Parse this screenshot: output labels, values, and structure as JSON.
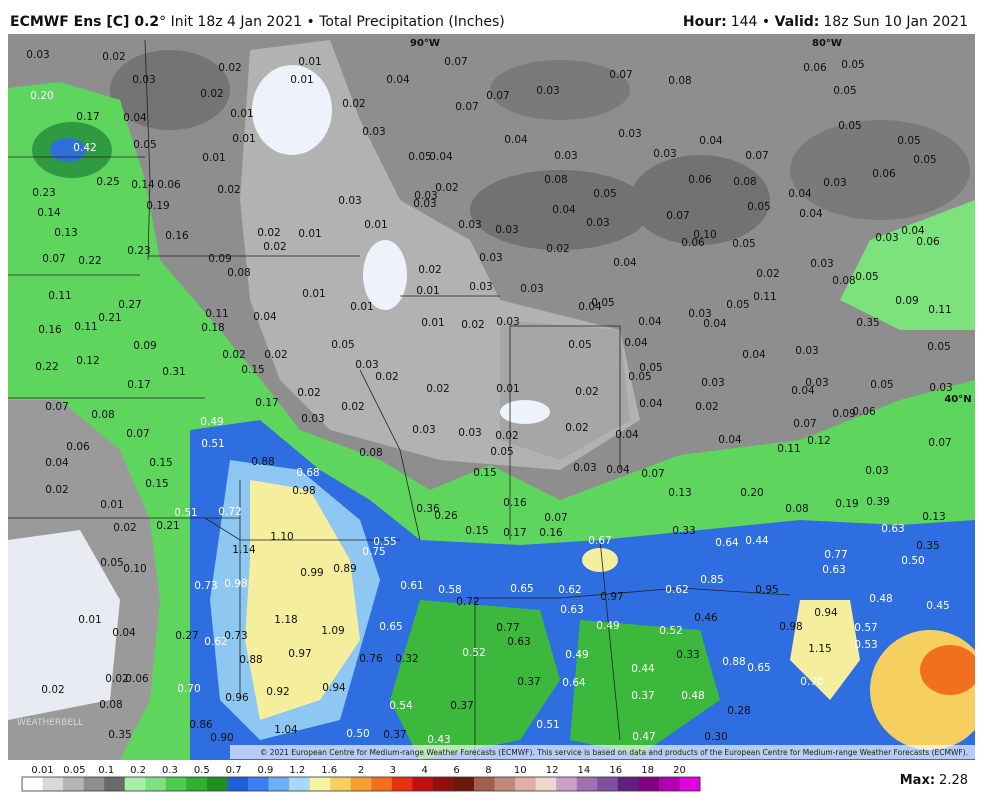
{
  "header": {
    "model": "ECMWF Ens [C] 0.2",
    "init": "° Init 18z 4 Jan 2021 • Total Precipitation (Inches)",
    "hour_label": "Hour:",
    "hour": "144",
    "sep": " • ",
    "valid_label": "Valid:",
    "valid": "18z Sun 10 Jan 2021"
  },
  "map": {
    "grid_labels": [
      "90°W",
      "80°W",
      "40°N"
    ],
    "logo": "WEATHERBELL",
    "copyright": "© 2021 European Centre for Medium-range Weather Forecasts (ECMWF). This service is based on data and products of the European Centre for Medium-range Weather Forecasts (ECMWF).",
    "values": [
      "0.03",
      "0.02",
      "0.03",
      "0.02",
      "0.02",
      "0.01",
      "0.01",
      "0.01",
      "0.20",
      "0.17",
      "0.04",
      "0.42",
      "0.05",
      "0.01",
      "0.01",
      "0.02",
      "0.03",
      "0.04",
      "0.07",
      "0.07",
      "0.07",
      "0.03",
      "0.07",
      "0.08",
      "0.06",
      "0.05",
      "0.05",
      "0.05",
      "0.05",
      "0.05",
      "0.06",
      "0.04",
      "0.05",
      "0.04",
      "0.03",
      "0.03",
      "0.04",
      "0.03",
      "0.07",
      "0.25",
      "0.14",
      "0.06",
      "0.23",
      "0.02",
      "0.03",
      "0.03",
      "0.02",
      "0.03",
      "0.08",
      "0.05",
      "0.06",
      "0.08",
      "0.04",
      "0.03",
      "0.14",
      "0.19",
      "0.13",
      "0.16",
      "0.02",
      "0.01",
      "0.01",
      "0.03",
      "0.03",
      "0.04",
      "0.03",
      "0.07",
      "0.10",
      "0.06",
      "0.05",
      "0.05",
      "0.04",
      "0.03",
      "0.04",
      "0.06",
      "0.07",
      "0.22",
      "0.23",
      "0.09",
      "0.02",
      "0.08",
      "0.02",
      "0.03",
      "0.02",
      "0.04",
      "0.02",
      "0.03",
      "0.05",
      "0.08",
      "0.11",
      "0.27",
      "0.21",
      "0.11",
      "0.16",
      "0.01",
      "0.01",
      "0.03",
      "0.03",
      "0.01",
      "0.04",
      "0.11",
      "0.18",
      "0.01",
      "0.02",
      "0.03",
      "0.04",
      "0.05",
      "0.04",
      "0.05",
      "0.11",
      "0.09",
      "0.11",
      "0.35",
      "0.09",
      "0.12",
      "0.22",
      "0.02",
      "0.05",
      "0.02",
      "0.03",
      "0.05",
      "0.04",
      "0.03",
      "0.04",
      "0.04",
      "0.03",
      "0.05",
      "0.17",
      "0.31",
      "0.15",
      "0.02",
      "0.01",
      "0.02",
      "0.02",
      "0.05",
      "0.05",
      "0.03",
      "0.03",
      "0.04",
      "0.05",
      "0.03",
      "0.07",
      "0.08",
      "0.17",
      "0.02",
      "0.03",
      "0.02",
      "0.04",
      "0.02",
      "0.07",
      "0.09",
      "0.06",
      "0.49",
      "0.07",
      "0.06",
      "0.03",
      "0.03",
      "0.02",
      "0.02",
      "0.04",
      "0.04",
      "0.12",
      "0.07",
      "0.51",
      "0.08",
      "0.05",
      "0.11",
      "0.04",
      "0.15",
      "0.88",
      "0.68",
      "0.15",
      "0.03",
      "0.04",
      "0.07",
      "0.03",
      "0.02",
      "0.15",
      "0.98",
      "0.13",
      "0.20",
      "0.16",
      "0.19",
      "0.39",
      "0.01",
      "0.51",
      "0.72",
      "0.36",
      "0.26",
      "0.07",
      "0.08",
      "0.13",
      "0.02",
      "0.21",
      "0.15",
      "0.17",
      "0.16",
      "0.33",
      "0.63",
      "1.10",
      "0.75",
      "0.55",
      "0.67",
      "0.64",
      "0.44",
      "0.35",
      "1.14",
      "0.77",
      "0.50",
      "0.05",
      "0.10",
      "0.99",
      "0.89",
      "0.63",
      "0.73",
      "0.98",
      "0.61",
      "0.58",
      "0.65",
      "0.62",
      "0.97",
      "0.62",
      "0.85",
      "0.95",
      "0.48",
      "0.72",
      "0.63",
      "0.94",
      "0.45",
      "0.01",
      "1.18",
      "0.65",
      "0.46",
      "0.49",
      "0.52",
      "0.98",
      "0.57",
      "0.04",
      "0.27",
      "0.73",
      "0.62",
      "1.09",
      "0.77",
      "0.63",
      "0.53",
      "0.97",
      "0.76",
      "0.32",
      "0.52",
      "0.49",
      "0.33",
      "1.15",
      "0.88",
      "0.88",
      "0.65",
      "0.44",
      "0.02",
      "0.06",
      "0.70",
      "0.37",
      "0.64",
      "0.92",
      "0.94",
      "0.70",
      "0.02",
      "0.96",
      "0.37",
      "0.48",
      "0.08",
      "0.54",
      "0.37",
      "0.28",
      "0.86",
      "1.04",
      "0.51",
      "0.35",
      "0.90",
      "0.50",
      "0.37",
      "0.43",
      "0.47",
      "0.30"
    ]
  },
  "legend": {
    "ticks": [
      "0.01",
      "0.05",
      "0.1",
      "0.2",
      "0.3",
      "0.5",
      "0.7",
      "0.9",
      "1.2",
      "1.6",
      "2",
      "3",
      "4",
      "6",
      "8",
      "10",
      "12",
      "14",
      "16",
      "18",
      "20"
    ],
    "colors": [
      "#ffffff",
      "#d9d9d9",
      "#b5b5b5",
      "#8e8e8e",
      "#6a6a6a",
      "#a8f0a8",
      "#7fe07f",
      "#4fcc4f",
      "#2fb02f",
      "#1f8f1f",
      "#1f5fd8",
      "#3a7ff0",
      "#6fb0f5",
      "#a8d8f8",
      "#f7f2a0",
      "#f5d060",
      "#f5a030",
      "#f07020",
      "#e83010",
      "#c01010",
      "#901010",
      "#6a1a0a",
      "#a06050",
      "#c08878",
      "#e0b0a8",
      "#f0d8d0",
      "#c8a0c8",
      "#a070b0",
      "#8050a0",
      "#602080",
      "#800080",
      "#b000b0",
      "#e000e0"
    ],
    "max_label": "Max:",
    "max": "2.28"
  }
}
